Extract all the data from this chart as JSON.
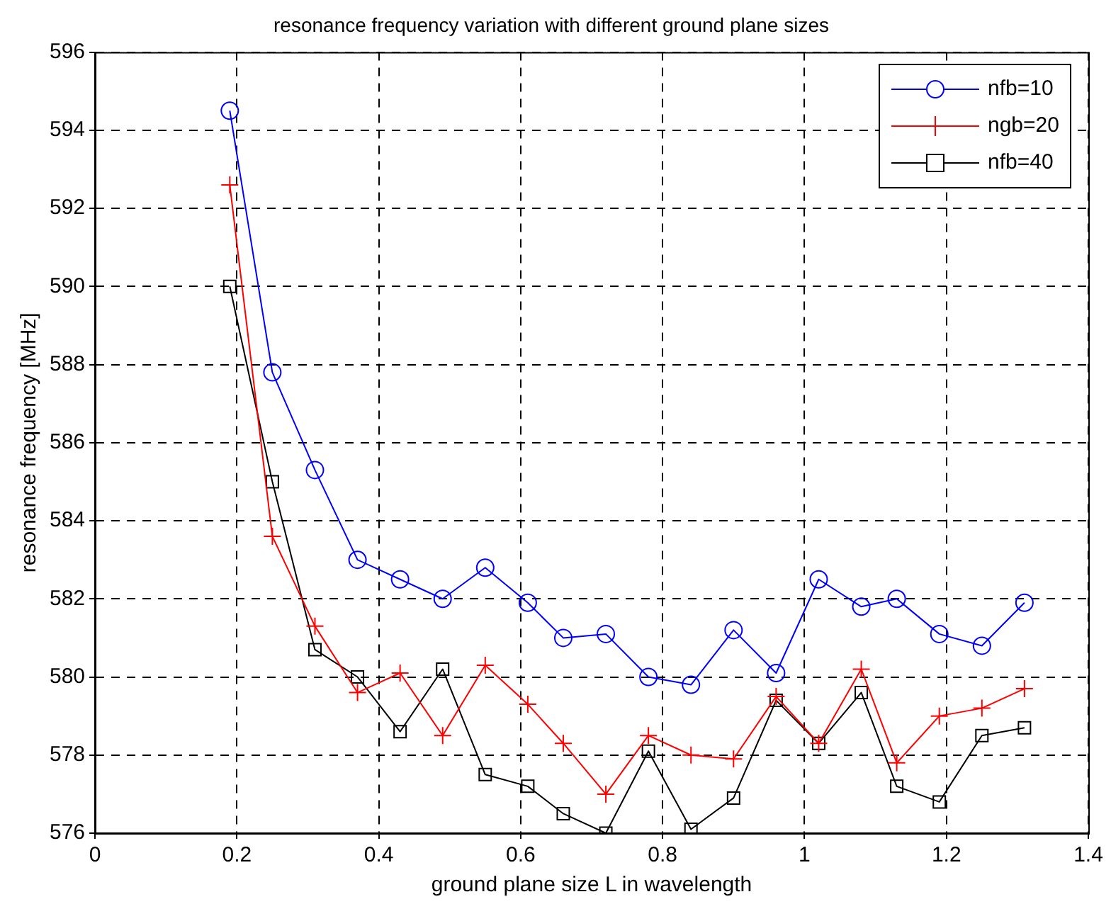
{
  "chart_data": {
    "type": "line",
    "title": "resonance frequency variation with different ground plane sizes",
    "xlabel": "ground plane size L in wavelength",
    "ylabel": "resonance frequency [MHz]",
    "x": [
      0.19,
      0.25,
      0.31,
      0.37,
      0.43,
      0.49,
      0.55,
      0.61,
      0.66,
      0.72,
      0.78,
      0.84,
      0.9,
      0.96,
      1.02,
      1.08,
      1.13,
      1.19,
      1.25,
      1.31
    ],
    "series": [
      {
        "name": "nfb=10",
        "color": "#0000ff",
        "marker": "circle",
        "values": [
          594.5,
          587.8,
          585.3,
          583.0,
          582.5,
          582.0,
          582.8,
          581.9,
          581.0,
          581.1,
          580.0,
          579.8,
          581.2,
          580.1,
          582.5,
          581.8,
          582.0,
          581.1,
          580.8,
          581.9
        ]
      },
      {
        "name": "ngb=20",
        "color": "#ff0000",
        "marker": "cross",
        "values": [
          592.6,
          583.6,
          581.3,
          579.6,
          580.1,
          578.5,
          580.3,
          579.3,
          578.3,
          577.0,
          578.5,
          578.0,
          577.9,
          579.5,
          578.3,
          580.2,
          577.8,
          579.0,
          579.2,
          579.7
        ]
      },
      {
        "name": "nfb=40",
        "color": "#000000",
        "marker": "square",
        "values": [
          590.0,
          585.0,
          580.7,
          580.0,
          578.6,
          580.2,
          577.5,
          577.2,
          576.5,
          576.0,
          578.1,
          576.1,
          576.9,
          579.4,
          578.3,
          579.6,
          577.2,
          576.8,
          578.5,
          578.7
        ]
      }
    ],
    "xlim": [
      0,
      1.4
    ],
    "xticks": [
      0,
      0.2,
      0.4,
      0.6,
      0.8,
      1,
      1.2,
      1.4
    ],
    "ylim": [
      576,
      596
    ],
    "yticks": [
      576,
      578,
      580,
      582,
      584,
      586,
      588,
      590,
      592,
      594,
      596
    ],
    "grid": true,
    "legend": "top right",
    "line_style": "solid"
  }
}
